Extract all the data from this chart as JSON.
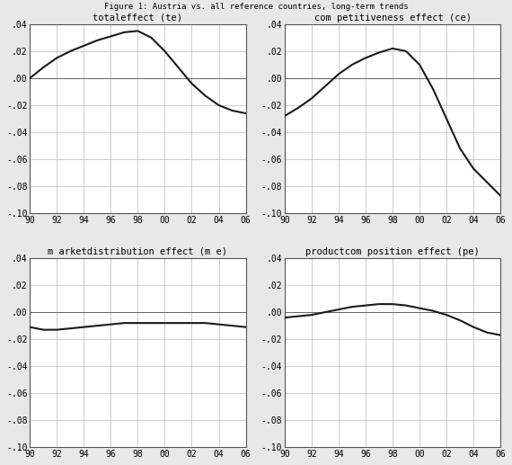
{
  "x_years": [
    90,
    91,
    92,
    93,
    94,
    95,
    96,
    97,
    98,
    99,
    100,
    101,
    102,
    103,
    104,
    105,
    106
  ],
  "te_values": [
    0.0,
    0.008,
    0.015,
    0.02,
    0.024,
    0.028,
    0.031,
    0.034,
    0.035,
    0.03,
    0.02,
    0.008,
    -0.004,
    -0.013,
    -0.02,
    -0.024,
    -0.026
  ],
  "ce_values": [
    -0.028,
    -0.022,
    -0.015,
    -0.006,
    0.003,
    0.01,
    0.015,
    0.019,
    0.022,
    0.02,
    0.01,
    -0.008,
    -0.03,
    -0.052,
    -0.067,
    -0.077,
    -0.087
  ],
  "me_values": [
    -0.011,
    -0.013,
    -0.013,
    -0.012,
    -0.011,
    -0.01,
    -0.009,
    -0.008,
    -0.008,
    -0.008,
    -0.008,
    -0.008,
    -0.008,
    -0.008,
    -0.009,
    -0.01,
    -0.011
  ],
  "pe_values": [
    -0.004,
    -0.003,
    -0.002,
    0.0,
    0.002,
    0.004,
    0.005,
    0.006,
    0.006,
    0.005,
    0.003,
    0.001,
    -0.002,
    -0.006,
    -0.011,
    -0.015,
    -0.017
  ],
  "x_tick_labels": [
    "90",
    "92",
    "94",
    "96",
    "98",
    "00",
    "02",
    "04",
    "06"
  ],
  "x_tick_positions": [
    90,
    92,
    94,
    96,
    98,
    100,
    102,
    104,
    106
  ],
  "ylim": [
    -0.1,
    0.04
  ],
  "yticks": [
    -0.1,
    -0.08,
    -0.06,
    -0.04,
    -0.02,
    0.0,
    0.02,
    0.04
  ],
  "ytick_labels": [
    "-.10",
    "-.08",
    "-.06",
    "-.04",
    "-.02",
    ".00",
    ".02",
    ".04"
  ],
  "titles": [
    "totaleffect (te)",
    "com petitiveness effect (ce)",
    "m arketdistribution effect (m e)",
    "productcom position effect (pe)"
  ],
  "line_color": "#1a1a1a",
  "grid_color": "#bbbbbb",
  "bg_color": "#ffffff",
  "fig_bg_color": "#e8e8e8"
}
